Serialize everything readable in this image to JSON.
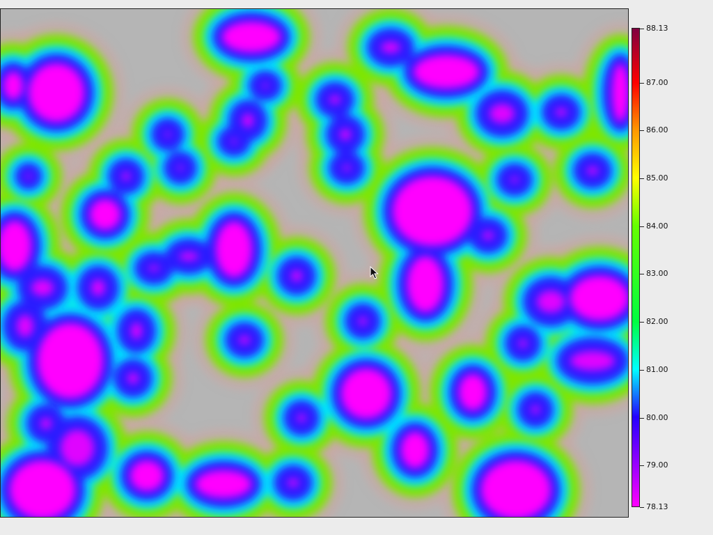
{
  "window": {
    "background": "#ececec"
  },
  "plot": {
    "background_color": "#b5b5b5",
    "palette": [
      "#ff00ff",
      "#2a1cff",
      "#00e5ff",
      "#7ee600"
    ]
  },
  "colorbar": {
    "min": 78.13,
    "max": 88.13,
    "gradient_stops": [
      {
        "value": 78.13,
        "color": "#ff00ff"
      },
      {
        "value": 80.0,
        "color": "#2400ff"
      },
      {
        "value": 81.0,
        "color": "#00ffff"
      },
      {
        "value": 82.0,
        "color": "#00ff40"
      },
      {
        "value": 84.0,
        "color": "#66ff00"
      },
      {
        "value": 85.0,
        "color": "#ffff00"
      },
      {
        "value": 86.0,
        "color": "#ff9800"
      },
      {
        "value": 87.0,
        "color": "#ff0000"
      },
      {
        "value": 88.13,
        "color": "#800040"
      }
    ],
    "ticks": [
      {
        "value": 88.13,
        "label": "88.13"
      },
      {
        "value": 87.0,
        "label": "87.00"
      },
      {
        "value": 86.0,
        "label": "86.00"
      },
      {
        "value": 85.0,
        "label": "85.00"
      },
      {
        "value": 84.0,
        "label": "84.00"
      },
      {
        "value": 83.0,
        "label": "83.00"
      },
      {
        "value": 82.0,
        "label": "82.00"
      },
      {
        "value": 81.0,
        "label": "81.00"
      },
      {
        "value": 80.0,
        "label": "80.00"
      },
      {
        "value": 79.0,
        "label": "79.00"
      },
      {
        "value": 78.13,
        "label": "78.13"
      }
    ]
  },
  "cursor": {
    "icon": "arrow-cursor-icon"
  }
}
